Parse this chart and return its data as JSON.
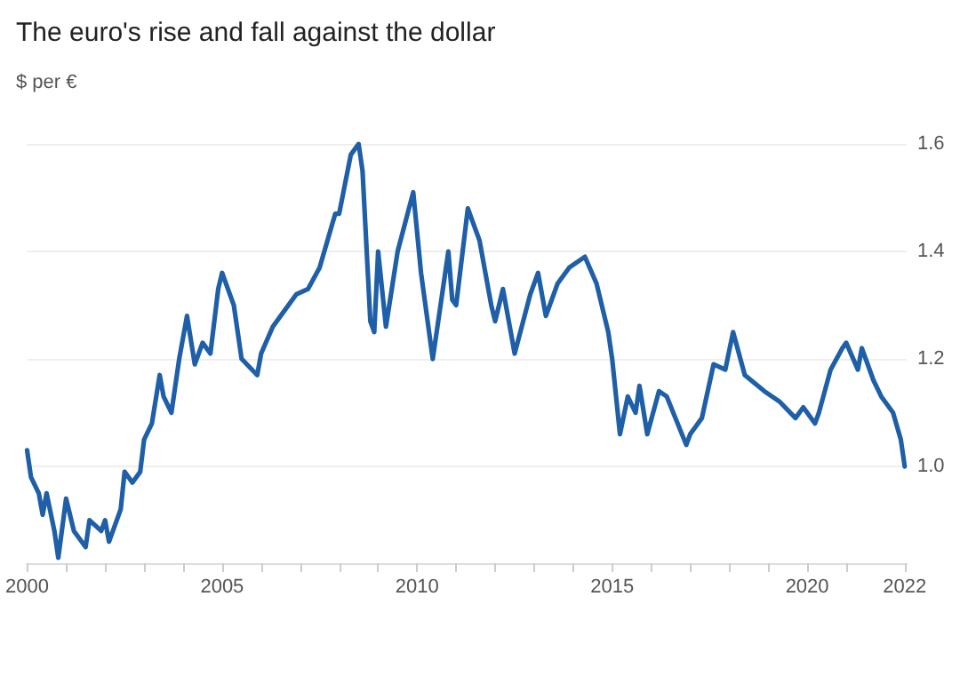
{
  "chart_data": {
    "type": "line",
    "title": "The euro's rise and fall against the dollar",
    "ylabel": "$ per €",
    "x": [
      2000.0,
      2000.1,
      2000.3,
      2000.4,
      2000.5,
      2000.7,
      2000.8,
      2001.0,
      2001.2,
      2001.5,
      2001.6,
      2001.9,
      2002.0,
      2002.1,
      2002.4,
      2002.5,
      2002.7,
      2002.9,
      2003.0,
      2003.2,
      2003.4,
      2003.5,
      2003.7,
      2003.9,
      2004.1,
      2004.3,
      2004.5,
      2004.7,
      2004.9,
      2005.0,
      2005.3,
      2005.5,
      2005.9,
      2006.0,
      2006.3,
      2006.5,
      2006.9,
      2007.2,
      2007.5,
      2007.9,
      2008.0,
      2008.3,
      2008.5,
      2008.6,
      2008.8,
      2008.9,
      2009.0,
      2009.2,
      2009.5,
      2009.9,
      2010.1,
      2010.4,
      2010.6,
      2010.8,
      2010.9,
      2011.0,
      2011.3,
      2011.6,
      2011.9,
      2012.0,
      2012.2,
      2012.5,
      2012.9,
      2013.1,
      2013.3,
      2013.6,
      2013.9,
      2014.3,
      2014.6,
      2014.9,
      2015.0,
      2015.2,
      2015.4,
      2015.6,
      2015.7,
      2015.9,
      2016.2,
      2016.4,
      2016.9,
      2017.0,
      2017.3,
      2017.6,
      2017.9,
      2018.1,
      2018.4,
      2018.9,
      2019.3,
      2019.7,
      2019.9,
      2020.2,
      2020.3,
      2020.6,
      2020.9,
      2021.0,
      2021.3,
      2021.4,
      2021.7,
      2021.9,
      2022.2,
      2022.4,
      2022.5
    ],
    "series": [
      {
        "color": "#1f5fa8",
        "values": [
          1.03,
          0.98,
          0.95,
          0.91,
          0.95,
          0.88,
          0.83,
          0.94,
          0.88,
          0.85,
          0.9,
          0.88,
          0.9,
          0.86,
          0.92,
          0.99,
          0.97,
          0.99,
          1.05,
          1.08,
          1.17,
          1.13,
          1.1,
          1.2,
          1.28,
          1.19,
          1.23,
          1.21,
          1.33,
          1.36,
          1.3,
          1.2,
          1.17,
          1.21,
          1.26,
          1.28,
          1.32,
          1.33,
          1.37,
          1.47,
          1.47,
          1.58,
          1.6,
          1.55,
          1.27,
          1.25,
          1.4,
          1.26,
          1.4,
          1.51,
          1.36,
          1.2,
          1.3,
          1.4,
          1.31,
          1.3,
          1.48,
          1.42,
          1.3,
          1.27,
          1.33,
          1.21,
          1.32,
          1.36,
          1.28,
          1.34,
          1.37,
          1.39,
          1.34,
          1.25,
          1.2,
          1.06,
          1.13,
          1.1,
          1.15,
          1.06,
          1.14,
          1.13,
          1.04,
          1.06,
          1.09,
          1.19,
          1.18,
          1.25,
          1.17,
          1.14,
          1.12,
          1.09,
          1.11,
          1.08,
          1.1,
          1.18,
          1.22,
          1.23,
          1.18,
          1.22,
          1.16,
          1.13,
          1.1,
          1.05,
          1.0
        ]
      }
    ],
    "xlim": [
      2000,
      2022.55
    ],
    "xticks": [
      2000,
      {
        "value": 2001,
        "label": null
      },
      {
        "value": 2002,
        "label": null
      },
      {
        "value": 2003,
        "label": null
      },
      {
        "value": 2004,
        "label": null
      },
      2005,
      {
        "value": 2006,
        "label": null
      },
      {
        "value": 2007,
        "label": null
      },
      {
        "value": 2008,
        "label": null
      },
      {
        "value": 2009,
        "label": null
      },
      2010,
      {
        "value": 2011,
        "label": null
      },
      {
        "value": 2012,
        "label": null
      },
      {
        "value": 2013,
        "label": null
      },
      {
        "value": 2014,
        "label": null
      },
      2015,
      {
        "value": 2016,
        "label": null
      },
      {
        "value": 2017,
        "label": null
      },
      {
        "value": 2018,
        "label": null
      },
      {
        "value": 2019,
        "label": null
      },
      2020,
      {
        "value": 2021,
        "label": null
      },
      {
        "value": 2022.5,
        "label": "2022"
      }
    ],
    "ylim": [
      0.82,
      1.6
    ],
    "yticks": [
      {
        "value": 1.0,
        "label": "1.0"
      },
      1.2,
      1.4,
      1.6
    ],
    "grid": "y",
    "marker": "none",
    "line_style": "solid"
  }
}
